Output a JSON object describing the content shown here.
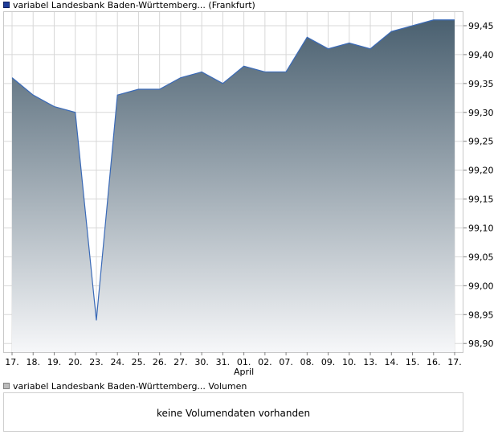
{
  "legend": {
    "price_label": "variabel Landesbank Baden-Württemberg... (Frankfurt)",
    "volume_label": "variabel Landesbank Baden-Württemberg... Volumen"
  },
  "volume_panel": {
    "message": "keine Volumendaten vorhanden"
  },
  "colors": {
    "line": "#3a6ab8",
    "fill_top": "#4a6070",
    "fill_bottom": "#f6f7f9",
    "grid": "#d8d8d8",
    "frame": "#c8c8c8"
  },
  "chart_data": {
    "type": "area",
    "x": [
      "17.",
      "18.",
      "19.",
      "20.",
      "23.",
      "24.",
      "25.",
      "26.",
      "27.",
      "30.",
      "31.",
      "01.",
      "02.",
      "07.",
      "08.",
      "09.",
      "10.",
      "13.",
      "14.",
      "15.",
      "16.",
      "17."
    ],
    "x_sublabels": [
      {
        "index": 11,
        "text": "April"
      }
    ],
    "y": [
      99.36,
      99.33,
      99.31,
      99.3,
      98.94,
      99.33,
      99.34,
      99.34,
      99.36,
      99.37,
      99.35,
      99.38,
      99.37,
      99.37,
      99.43,
      99.41,
      99.42,
      99.41,
      99.44,
      99.45,
      99.46,
      99.46
    ],
    "y_ticks": [
      "98,90",
      "98,95",
      "99,00",
      "99,05",
      "99,10",
      "99,15",
      "99,20",
      "99,25",
      "99,30",
      "99,35",
      "99,40",
      "99,45"
    ],
    "ylim": [
      98.885,
      99.475
    ],
    "y_axis_side": "right",
    "grid": true
  }
}
